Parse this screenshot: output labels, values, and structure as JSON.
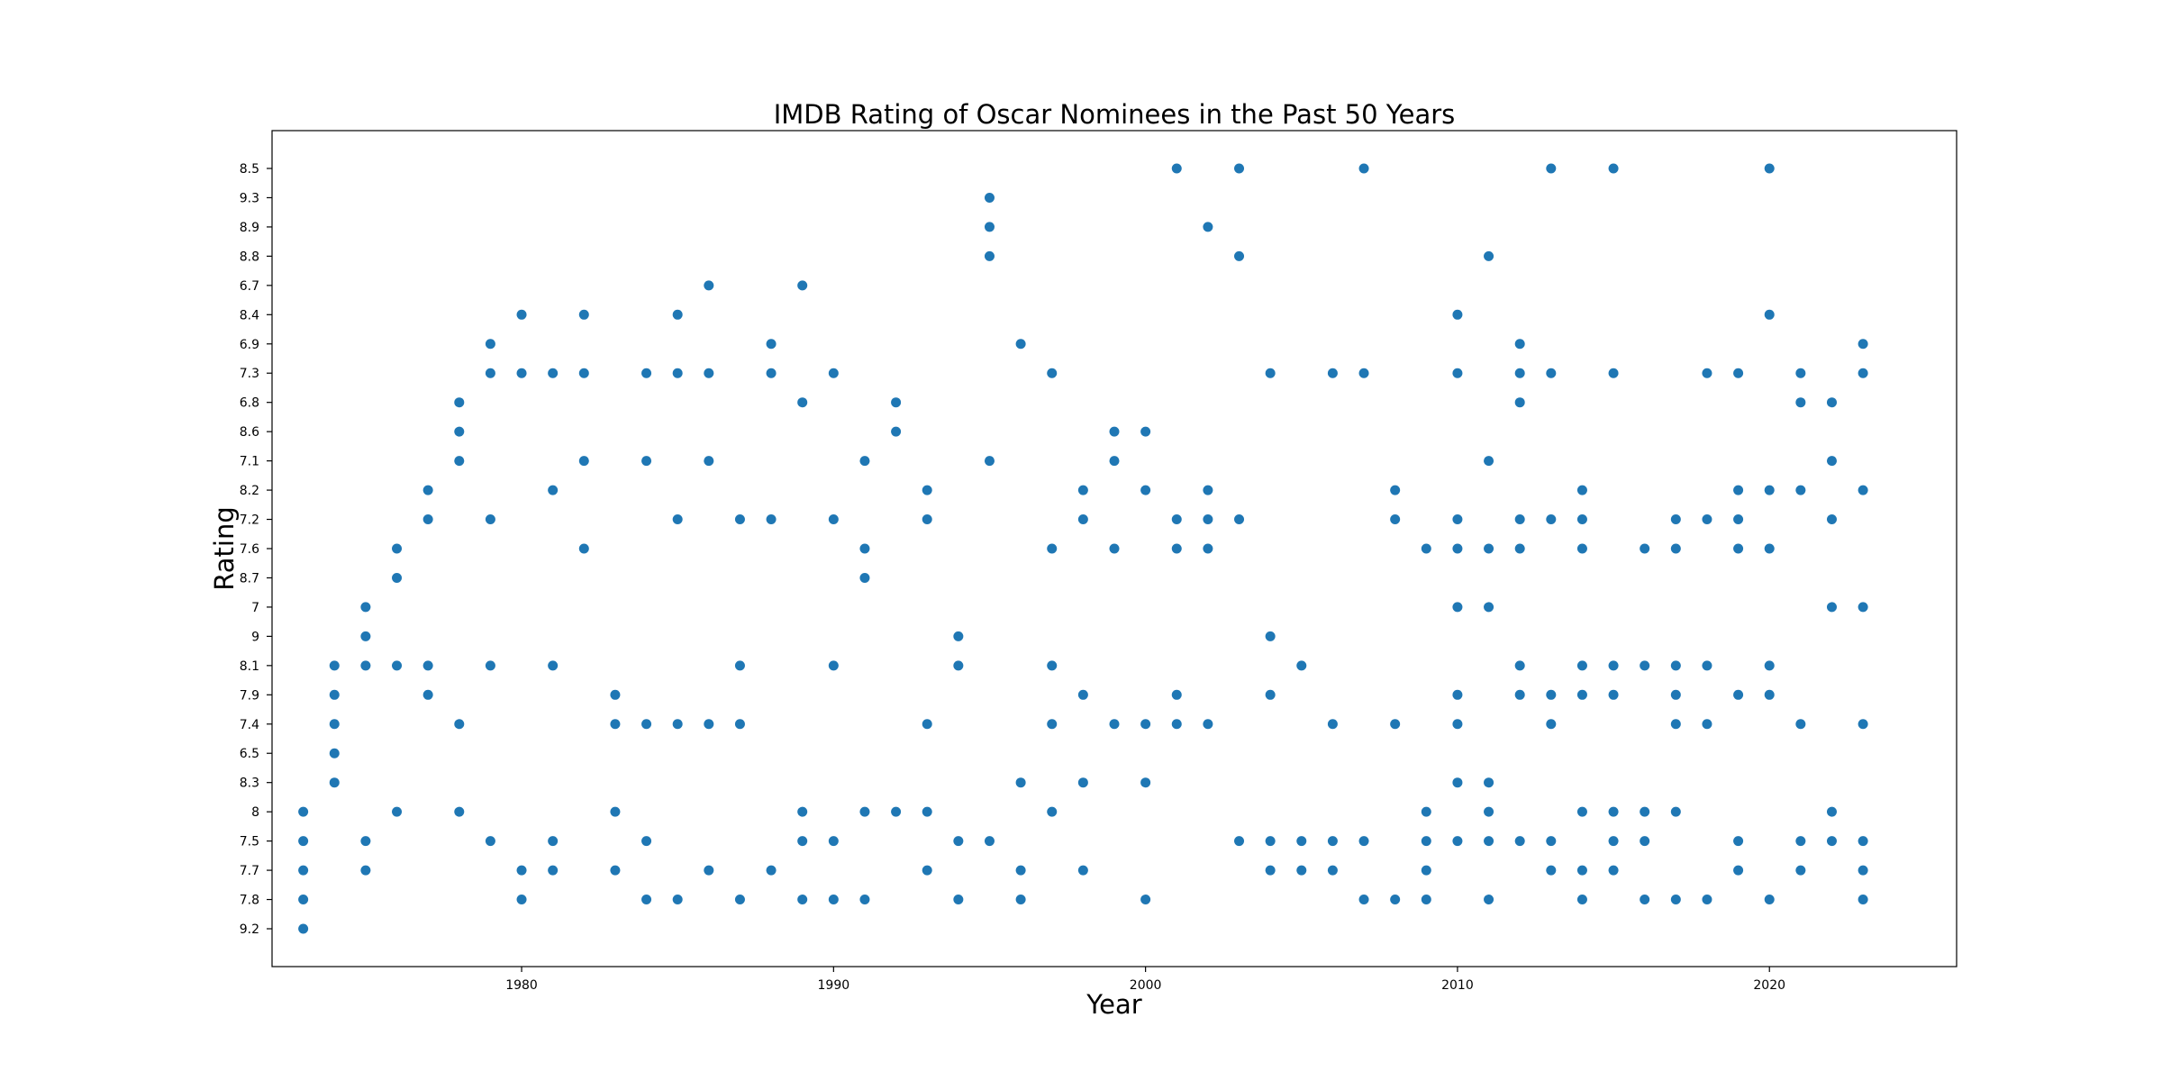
{
  "chart_data": {
    "type": "scatter",
    "title": "IMDB Rating of Oscar Nominees in the Past 50 Years",
    "xlabel": "Year",
    "ylabel": "Rating",
    "xlim": [
      1972.0,
      2026.0
    ],
    "xticks": [
      1980,
      1990,
      2000,
      2010,
      2020
    ],
    "y_scale": "categorical",
    "y_categories": [
      "9.2",
      "7.8",
      "7.7",
      "7.5",
      "8",
      "8.3",
      "6.5",
      "7.4",
      "7.9",
      "8.1",
      "9",
      "7",
      "8.7",
      "7.6",
      "7.2",
      "8.2",
      "7.1",
      "8.6",
      "6.8",
      "7.3",
      "6.9",
      "8.4",
      "6.7",
      "8.8",
      "8.9",
      "9.3",
      "8.5"
    ],
    "grid": false,
    "legend": "none",
    "marker_color": "#1f77b4",
    "points": [
      {
        "x": 1973,
        "y": "9.2"
      },
      {
        "x": 1973,
        "y": "7.8"
      },
      {
        "x": 1973,
        "y": "7.7"
      },
      {
        "x": 1973,
        "y": "7.5"
      },
      {
        "x": 1973,
        "y": "8"
      },
      {
        "x": 1974,
        "y": "8.3"
      },
      {
        "x": 1974,
        "y": "6.5"
      },
      {
        "x": 1974,
        "y": "7.4"
      },
      {
        "x": 1974,
        "y": "7.9"
      },
      {
        "x": 1974,
        "y": "8.1"
      },
      {
        "x": 1975,
        "y": "7.7"
      },
      {
        "x": 1975,
        "y": "7.5"
      },
      {
        "x": 1975,
        "y": "8.1"
      },
      {
        "x": 1975,
        "y": "9"
      },
      {
        "x": 1975,
        "y": "7"
      },
      {
        "x": 1976,
        "y": "8"
      },
      {
        "x": 1976,
        "y": "8.1"
      },
      {
        "x": 1976,
        "y": "8.7"
      },
      {
        "x": 1976,
        "y": "7.6"
      },
      {
        "x": 1977,
        "y": "7.9"
      },
      {
        "x": 1977,
        "y": "8.1"
      },
      {
        "x": 1977,
        "y": "7.2"
      },
      {
        "x": 1977,
        "y": "8.2"
      },
      {
        "x": 1978,
        "y": "8"
      },
      {
        "x": 1978,
        "y": "7.4"
      },
      {
        "x": 1978,
        "y": "7.1"
      },
      {
        "x": 1978,
        "y": "8.6"
      },
      {
        "x": 1978,
        "y": "6.8"
      },
      {
        "x": 1979,
        "y": "7.5"
      },
      {
        "x": 1979,
        "y": "8.1"
      },
      {
        "x": 1979,
        "y": "7.2"
      },
      {
        "x": 1979,
        "y": "7.3"
      },
      {
        "x": 1979,
        "y": "6.9"
      },
      {
        "x": 1980,
        "y": "7.8"
      },
      {
        "x": 1980,
        "y": "7.7"
      },
      {
        "x": 1980,
        "y": "7.3"
      },
      {
        "x": 1980,
        "y": "8.4"
      },
      {
        "x": 1981,
        "y": "7.7"
      },
      {
        "x": 1981,
        "y": "7.5"
      },
      {
        "x": 1981,
        "y": "8.1"
      },
      {
        "x": 1981,
        "y": "8.2"
      },
      {
        "x": 1981,
        "y": "7.3"
      },
      {
        "x": 1982,
        "y": "7.6"
      },
      {
        "x": 1982,
        "y": "7.1"
      },
      {
        "x": 1982,
        "y": "7.3"
      },
      {
        "x": 1982,
        "y": "8.4"
      },
      {
        "x": 1983,
        "y": "7.7"
      },
      {
        "x": 1983,
        "y": "8"
      },
      {
        "x": 1983,
        "y": "7.4"
      },
      {
        "x": 1983,
        "y": "7.9"
      },
      {
        "x": 1984,
        "y": "7.8"
      },
      {
        "x": 1984,
        "y": "7.5"
      },
      {
        "x": 1984,
        "y": "7.4"
      },
      {
        "x": 1984,
        "y": "7.1"
      },
      {
        "x": 1984,
        "y": "7.3"
      },
      {
        "x": 1985,
        "y": "7.8"
      },
      {
        "x": 1985,
        "y": "7.4"
      },
      {
        "x": 1985,
        "y": "7.2"
      },
      {
        "x": 1985,
        "y": "7.3"
      },
      {
        "x": 1985,
        "y": "8.4"
      },
      {
        "x": 1986,
        "y": "7.7"
      },
      {
        "x": 1986,
        "y": "7.4"
      },
      {
        "x": 1986,
        "y": "7.1"
      },
      {
        "x": 1986,
        "y": "7.3"
      },
      {
        "x": 1986,
        "y": "6.7"
      },
      {
        "x": 1987,
        "y": "7.8"
      },
      {
        "x": 1987,
        "y": "7.4"
      },
      {
        "x": 1987,
        "y": "8.1"
      },
      {
        "x": 1987,
        "y": "7.2"
      },
      {
        "x": 1988,
        "y": "7.7"
      },
      {
        "x": 1988,
        "y": "7.2"
      },
      {
        "x": 1988,
        "y": "7.3"
      },
      {
        "x": 1988,
        "y": "6.9"
      },
      {
        "x": 1989,
        "y": "7.8"
      },
      {
        "x": 1989,
        "y": "7.5"
      },
      {
        "x": 1989,
        "y": "8"
      },
      {
        "x": 1989,
        "y": "6.8"
      },
      {
        "x": 1989,
        "y": "6.7"
      },
      {
        "x": 1990,
        "y": "7.8"
      },
      {
        "x": 1990,
        "y": "7.5"
      },
      {
        "x": 1990,
        "y": "8.1"
      },
      {
        "x": 1990,
        "y": "7.2"
      },
      {
        "x": 1990,
        "y": "7.3"
      },
      {
        "x": 1991,
        "y": "7.8"
      },
      {
        "x": 1991,
        "y": "8"
      },
      {
        "x": 1991,
        "y": "8.7"
      },
      {
        "x": 1991,
        "y": "7.6"
      },
      {
        "x": 1991,
        "y": "7.1"
      },
      {
        "x": 1992,
        "y": "8"
      },
      {
        "x": 1992,
        "y": "8.6"
      },
      {
        "x": 1992,
        "y": "6.8"
      },
      {
        "x": 1993,
        "y": "7.7"
      },
      {
        "x": 1993,
        "y": "8"
      },
      {
        "x": 1993,
        "y": "7.4"
      },
      {
        "x": 1993,
        "y": "7.2"
      },
      {
        "x": 1993,
        "y": "8.2"
      },
      {
        "x": 1994,
        "y": "7.8"
      },
      {
        "x": 1994,
        "y": "7.5"
      },
      {
        "x": 1994,
        "y": "8.1"
      },
      {
        "x": 1994,
        "y": "9"
      },
      {
        "x": 1995,
        "y": "7.5"
      },
      {
        "x": 1995,
        "y": "7.1"
      },
      {
        "x": 1995,
        "y": "8.8"
      },
      {
        "x": 1995,
        "y": "8.9"
      },
      {
        "x": 1995,
        "y": "9.3"
      },
      {
        "x": 1996,
        "y": "7.8"
      },
      {
        "x": 1996,
        "y": "7.7"
      },
      {
        "x": 1996,
        "y": "8.3"
      },
      {
        "x": 1996,
        "y": "6.9"
      },
      {
        "x": 1997,
        "y": "8"
      },
      {
        "x": 1997,
        "y": "7.4"
      },
      {
        "x": 1997,
        "y": "8.1"
      },
      {
        "x": 1997,
        "y": "7.6"
      },
      {
        "x": 1997,
        "y": "7.3"
      },
      {
        "x": 1998,
        "y": "7.7"
      },
      {
        "x": 1998,
        "y": "8.3"
      },
      {
        "x": 1998,
        "y": "7.9"
      },
      {
        "x": 1998,
        "y": "7.2"
      },
      {
        "x": 1998,
        "y": "8.2"
      },
      {
        "x": 1999,
        "y": "7.4"
      },
      {
        "x": 1999,
        "y": "7.6"
      },
      {
        "x": 1999,
        "y": "7.1"
      },
      {
        "x": 1999,
        "y": "8.6"
      },
      {
        "x": 2000,
        "y": "7.8"
      },
      {
        "x": 2000,
        "y": "8.3"
      },
      {
        "x": 2000,
        "y": "7.4"
      },
      {
        "x": 2000,
        "y": "8.2"
      },
      {
        "x": 2000,
        "y": "8.6"
      },
      {
        "x": 2001,
        "y": "7.4"
      },
      {
        "x": 2001,
        "y": "7.9"
      },
      {
        "x": 2001,
        "y": "7.6"
      },
      {
        "x": 2001,
        "y": "7.2"
      },
      {
        "x": 2001,
        "y": "8.5"
      },
      {
        "x": 2002,
        "y": "7.4"
      },
      {
        "x": 2002,
        "y": "7.6"
      },
      {
        "x": 2002,
        "y": "7.2"
      },
      {
        "x": 2002,
        "y": "8.2"
      },
      {
        "x": 2002,
        "y": "8.9"
      },
      {
        "x": 2003,
        "y": "7.5"
      },
      {
        "x": 2003,
        "y": "7.2"
      },
      {
        "x": 2003,
        "y": "8.8"
      },
      {
        "x": 2003,
        "y": "8.5"
      },
      {
        "x": 2004,
        "y": "7.7"
      },
      {
        "x": 2004,
        "y": "7.5"
      },
      {
        "x": 2004,
        "y": "7.9"
      },
      {
        "x": 2004,
        "y": "9"
      },
      {
        "x": 2004,
        "y": "7.3"
      },
      {
        "x": 2005,
        "y": "7.7"
      },
      {
        "x": 2005,
        "y": "7.5"
      },
      {
        "x": 2005,
        "y": "8.1"
      },
      {
        "x": 2006,
        "y": "7.7"
      },
      {
        "x": 2006,
        "y": "7.5"
      },
      {
        "x": 2006,
        "y": "7.4"
      },
      {
        "x": 2006,
        "y": "7.3"
      },
      {
        "x": 2007,
        "y": "7.8"
      },
      {
        "x": 2007,
        "y": "7.5"
      },
      {
        "x": 2007,
        "y": "7.3"
      },
      {
        "x": 2007,
        "y": "8.5"
      },
      {
        "x": 2008,
        "y": "7.8"
      },
      {
        "x": 2008,
        "y": "7.4"
      },
      {
        "x": 2008,
        "y": "7.2"
      },
      {
        "x": 2008,
        "y": "8.2"
      },
      {
        "x": 2009,
        "y": "7.8"
      },
      {
        "x": 2009,
        "y": "7.7"
      },
      {
        "x": 2009,
        "y": "7.5"
      },
      {
        "x": 2009,
        "y": "8"
      },
      {
        "x": 2009,
        "y": "7.6"
      },
      {
        "x": 2010,
        "y": "7.5"
      },
      {
        "x": 2010,
        "y": "8.3"
      },
      {
        "x": 2010,
        "y": "7.4"
      },
      {
        "x": 2010,
        "y": "7.9"
      },
      {
        "x": 2010,
        "y": "7"
      },
      {
        "x": 2010,
        "y": "7.6"
      },
      {
        "x": 2010,
        "y": "7.2"
      },
      {
        "x": 2010,
        "y": "7.3"
      },
      {
        "x": 2010,
        "y": "8.4"
      },
      {
        "x": 2011,
        "y": "7.8"
      },
      {
        "x": 2011,
        "y": "7.5"
      },
      {
        "x": 2011,
        "y": "8"
      },
      {
        "x": 2011,
        "y": "8.3"
      },
      {
        "x": 2011,
        "y": "7"
      },
      {
        "x": 2011,
        "y": "7.6"
      },
      {
        "x": 2011,
        "y": "7.1"
      },
      {
        "x": 2011,
        "y": "8.8"
      },
      {
        "x": 2012,
        "y": "7.5"
      },
      {
        "x": 2012,
        "y": "7.9"
      },
      {
        "x": 2012,
        "y": "8.1"
      },
      {
        "x": 2012,
        "y": "7.6"
      },
      {
        "x": 2012,
        "y": "7.2"
      },
      {
        "x": 2012,
        "y": "6.8"
      },
      {
        "x": 2012,
        "y": "7.3"
      },
      {
        "x": 2012,
        "y": "6.9"
      },
      {
        "x": 2013,
        "y": "7.7"
      },
      {
        "x": 2013,
        "y": "7.5"
      },
      {
        "x": 2013,
        "y": "7.4"
      },
      {
        "x": 2013,
        "y": "7.9"
      },
      {
        "x": 2013,
        "y": "7.2"
      },
      {
        "x": 2013,
        "y": "7.3"
      },
      {
        "x": 2013,
        "y": "8.5"
      },
      {
        "x": 2014,
        "y": "7.8"
      },
      {
        "x": 2014,
        "y": "7.7"
      },
      {
        "x": 2014,
        "y": "8"
      },
      {
        "x": 2014,
        "y": "7.9"
      },
      {
        "x": 2014,
        "y": "8.1"
      },
      {
        "x": 2014,
        "y": "7.6"
      },
      {
        "x": 2014,
        "y": "7.2"
      },
      {
        "x": 2014,
        "y": "8.2"
      },
      {
        "x": 2015,
        "y": "7.7"
      },
      {
        "x": 2015,
        "y": "7.5"
      },
      {
        "x": 2015,
        "y": "8"
      },
      {
        "x": 2015,
        "y": "7.9"
      },
      {
        "x": 2015,
        "y": "8.1"
      },
      {
        "x": 2015,
        "y": "7.3"
      },
      {
        "x": 2015,
        "y": "8.5"
      },
      {
        "x": 2016,
        "y": "7.8"
      },
      {
        "x": 2016,
        "y": "7.5"
      },
      {
        "x": 2016,
        "y": "8"
      },
      {
        "x": 2016,
        "y": "8.1"
      },
      {
        "x": 2016,
        "y": "7.6"
      },
      {
        "x": 2017,
        "y": "7.8"
      },
      {
        "x": 2017,
        "y": "8"
      },
      {
        "x": 2017,
        "y": "7.4"
      },
      {
        "x": 2017,
        "y": "7.9"
      },
      {
        "x": 2017,
        "y": "8.1"
      },
      {
        "x": 2017,
        "y": "7.6"
      },
      {
        "x": 2017,
        "y": "7.2"
      },
      {
        "x": 2018,
        "y": "7.8"
      },
      {
        "x": 2018,
        "y": "7.4"
      },
      {
        "x": 2018,
        "y": "8.1"
      },
      {
        "x": 2018,
        "y": "7.2"
      },
      {
        "x": 2018,
        "y": "7.3"
      },
      {
        "x": 2019,
        "y": "7.7"
      },
      {
        "x": 2019,
        "y": "7.5"
      },
      {
        "x": 2019,
        "y": "7.9"
      },
      {
        "x": 2019,
        "y": "7.6"
      },
      {
        "x": 2019,
        "y": "7.2"
      },
      {
        "x": 2019,
        "y": "8.2"
      },
      {
        "x": 2019,
        "y": "7.3"
      },
      {
        "x": 2020,
        "y": "7.8"
      },
      {
        "x": 2020,
        "y": "7.9"
      },
      {
        "x": 2020,
        "y": "8.1"
      },
      {
        "x": 2020,
        "y": "7.6"
      },
      {
        "x": 2020,
        "y": "8.2"
      },
      {
        "x": 2020,
        "y": "8.4"
      },
      {
        "x": 2020,
        "y": "8.5"
      },
      {
        "x": 2021,
        "y": "7.7"
      },
      {
        "x": 2021,
        "y": "7.5"
      },
      {
        "x": 2021,
        "y": "7.4"
      },
      {
        "x": 2021,
        "y": "8.2"
      },
      {
        "x": 2021,
        "y": "6.8"
      },
      {
        "x": 2021,
        "y": "7.3"
      },
      {
        "x": 2022,
        "y": "7.5"
      },
      {
        "x": 2022,
        "y": "8"
      },
      {
        "x": 2022,
        "y": "7"
      },
      {
        "x": 2022,
        "y": "7.2"
      },
      {
        "x": 2022,
        "y": "7.1"
      },
      {
        "x": 2022,
        "y": "6.8"
      },
      {
        "x": 2023,
        "y": "7.8"
      },
      {
        "x": 2023,
        "y": "7.7"
      },
      {
        "x": 2023,
        "y": "7.5"
      },
      {
        "x": 2023,
        "y": "7.4"
      },
      {
        "x": 2023,
        "y": "7"
      },
      {
        "x": 2023,
        "y": "8.2"
      },
      {
        "x": 2023,
        "y": "7.3"
      },
      {
        "x": 2023,
        "y": "6.9"
      }
    ]
  }
}
